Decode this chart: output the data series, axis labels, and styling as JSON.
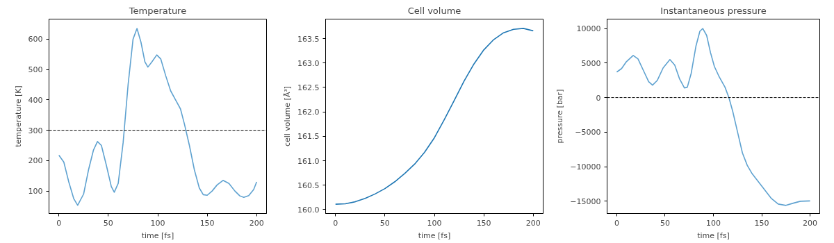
{
  "chart_data": [
    {
      "type": "line",
      "title": "Temperature",
      "xlabel": "time [fs]",
      "ylabel": "temperature [K]",
      "xlim": [
        -10,
        210
      ],
      "ylim": [
        26,
        666
      ],
      "xticks": [
        0,
        50,
        100,
        150,
        200
      ],
      "yticks": [
        100,
        200,
        300,
        400,
        500,
        600
      ],
      "grid": false,
      "line_style": "solid",
      "ref_lines": [
        {
          "axis": "y",
          "value": 300,
          "color": "#000000",
          "line_style": "dashed"
        }
      ],
      "series": [
        {
          "color": "#5fa2d0",
          "x": [
            0,
            5,
            10,
            15,
            19,
            25,
            30,
            35,
            39,
            43,
            48,
            53,
            56,
            60,
            65,
            70,
            75,
            79,
            83,
            87,
            90,
            94,
            99,
            103,
            108,
            113,
            118,
            123,
            127,
            132,
            137,
            142,
            146,
            150,
            155,
            160,
            166,
            172,
            178,
            183,
            187,
            192,
            197,
            200
          ],
          "values": [
            218,
            195,
            130,
            75,
            53,
            90,
            170,
            235,
            263,
            250,
            185,
            115,
            96,
            125,
            260,
            450,
            600,
            635,
            590,
            525,
            508,
            525,
            548,
            535,
            480,
            430,
            400,
            370,
            320,
            250,
            170,
            110,
            88,
            86,
            100,
            120,
            135,
            125,
            100,
            84,
            79,
            85,
            105,
            130
          ]
        }
      ]
    },
    {
      "type": "line",
      "title": "Cell volume",
      "xlabel": "time [fs]",
      "ylabel": "cell volume [Å³]",
      "xlim": [
        -10,
        210
      ],
      "ylim": [
        159.92,
        163.9
      ],
      "xticks": [
        0,
        50,
        100,
        150,
        200
      ],
      "yticks": [
        {
          "value": 160,
          "label": "160.0"
        },
        160.5,
        {
          "value": 161,
          "label": "161.0"
        },
        161.5,
        {
          "value": 162,
          "label": "162.0"
        },
        162.5,
        {
          "value": 163,
          "label": "163.0"
        },
        163.5
      ],
      "grid": false,
      "line_style": "solid",
      "series": [
        {
          "color": "#1f77b4",
          "x": [
            0,
            10,
            20,
            30,
            40,
            50,
            60,
            70,
            80,
            90,
            100,
            110,
            120,
            130,
            140,
            150,
            160,
            170,
            180,
            190,
            200
          ],
          "values": [
            160.11,
            160.12,
            160.16,
            160.23,
            160.32,
            160.43,
            160.57,
            160.74,
            160.93,
            161.17,
            161.47,
            161.84,
            162.23,
            162.63,
            162.98,
            163.27,
            163.48,
            163.62,
            163.69,
            163.71,
            163.66
          ]
        }
      ]
    },
    {
      "type": "line",
      "title": "Instantaneous pressure",
      "xlabel": "time [fs]",
      "ylabel": "pressure [bar]",
      "xlim": [
        -10,
        210
      ],
      "ylim": [
        -16770,
        11360
      ],
      "xticks": [
        0,
        50,
        100,
        150,
        200
      ],
      "yticks": [
        {
          "value": -15000,
          "label": "−15000"
        },
        {
          "value": -10000,
          "label": "−10000"
        },
        {
          "value": -5000,
          "label": "−5000"
        },
        0,
        5000,
        10000
      ],
      "grid": false,
      "line_style": "solid",
      "ref_lines": [
        {
          "axis": "y",
          "value": 0,
          "color": "#000000",
          "line_style": "dashed"
        }
      ],
      "series": [
        {
          "color": "#5fa2d0",
          "x": [
            0,
            5,
            10,
            17,
            22,
            28,
            33,
            37,
            42,
            48,
            55,
            60,
            65,
            70,
            73,
            77,
            82,
            86,
            89,
            93,
            97,
            101,
            106,
            112,
            116,
            120,
            125,
            130,
            135,
            140,
            150,
            160,
            167,
            175,
            182,
            190,
            200
          ],
          "values": [
            3700,
            4200,
            5200,
            6100,
            5600,
            3800,
            2300,
            1800,
            2500,
            4300,
            5500,
            4700,
            2700,
            1400,
            1500,
            3500,
            7500,
            9600,
            10000,
            9000,
            6500,
            4500,
            3000,
            1500,
            0,
            -2000,
            -5000,
            -8000,
            -9800,
            -11000,
            -12800,
            -14600,
            -15400,
            -15600,
            -15300,
            -15000,
            -14950
          ]
        }
      ]
    }
  ]
}
